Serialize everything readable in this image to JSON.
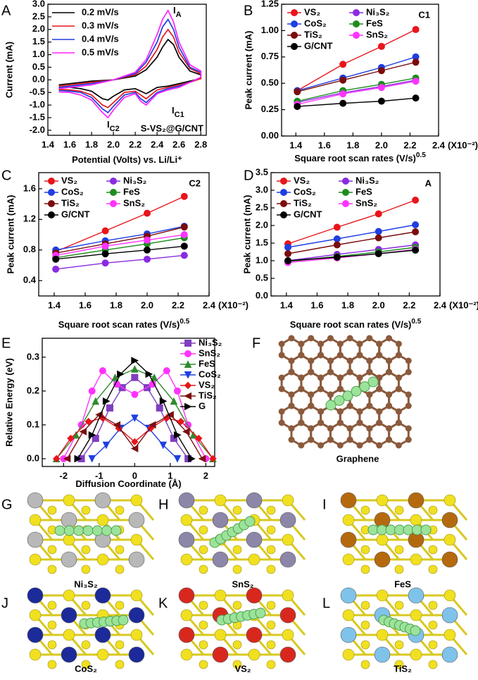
{
  "panels": [
    "A",
    "B",
    "C",
    "D",
    "E",
    "F",
    "G",
    "H",
    "I",
    "J",
    "K",
    "L"
  ],
  "structures": [
    "Graphene",
    "Ni₃S₂",
    "SnS₂",
    "FeS",
    "CoS₂",
    "VS₂",
    "TiS₂"
  ],
  "chart_data": [
    {
      "type": "line",
      "title": "S-VS₂@G/CNT",
      "xlabel": "Potential (Volts) vs. Li/Li⁺",
      "ylabel": "Current (mA)",
      "xlim": [
        1.4,
        2.85
      ],
      "ylim": [
        -2.2,
        3.0
      ],
      "xticks": [
        1.4,
        1.6,
        1.8,
        {
          "value": 2,
          "label": "2.0"
        },
        2.2,
        2.4,
        2.6,
        2.8
      ],
      "yticks": [
        {
          "value": -2,
          "label": "-2.0"
        },
        -1.5,
        {
          "value": -1,
          "label": "-1.0"
        },
        -0.5,
        {
          "value": 0,
          "label": "0.0"
        },
        0.5,
        {
          "value": 1,
          "label": "1.0"
        },
        1.5,
        {
          "value": 2,
          "label": "2.0"
        },
        2.5,
        {
          "value": 3,
          "label": "3.0"
        }
      ],
      "annotations": [
        {
          "text": "I",
          "subscript": "A"
        },
        {
          "text": "I",
          "subscript": "C1"
        },
        {
          "text": "I",
          "subscript": "C2"
        }
      ],
      "series": [
        {
          "name": "0.2 mV/s",
          "color": "#000000",
          "x": [
            1.5,
            1.6,
            1.8,
            2.0,
            2.2,
            2.3,
            2.4,
            2.45,
            2.5,
            2.55,
            2.6,
            2.7,
            2.8,
            2.8,
            2.7,
            2.6,
            2.5,
            2.4,
            2.3,
            2.25,
            2.2,
            2.1,
            2.0,
            1.95,
            1.9,
            1.8,
            1.7,
            1.6,
            1.5
          ],
          "values": [
            -0.2,
            -0.15,
            -0.05,
            0.0,
            0.15,
            0.4,
            0.9,
            1.3,
            1.6,
            1.4,
            0.9,
            0.35,
            0.2,
            0.05,
            -0.05,
            -0.15,
            -0.25,
            -0.3,
            -0.55,
            -0.45,
            -0.35,
            -0.4,
            -0.65,
            -0.8,
            -0.75,
            -0.45,
            -0.35,
            -0.3,
            -0.3
          ]
        },
        {
          "name": "0.3 mV/s",
          "color": "#e8151b",
          "x": [
            1.5,
            1.6,
            1.8,
            2.0,
            2.2,
            2.3,
            2.4,
            2.45,
            2.5,
            2.55,
            2.6,
            2.7,
            2.8,
            2.8,
            2.7,
            2.6,
            2.5,
            2.4,
            2.3,
            2.25,
            2.2,
            2.1,
            2.0,
            1.95,
            1.9,
            1.8,
            1.7,
            1.6,
            1.5
          ],
          "values": [
            -0.25,
            -0.2,
            -0.1,
            0.0,
            0.2,
            0.55,
            1.2,
            1.7,
            2.0,
            1.7,
            1.1,
            0.45,
            0.25,
            0.05,
            -0.1,
            -0.2,
            -0.3,
            -0.4,
            -0.75,
            -0.6,
            -0.45,
            -0.5,
            -0.9,
            -1.1,
            -1.0,
            -0.6,
            -0.45,
            -0.4,
            -0.38
          ]
        },
        {
          "name": "0.4 mV/s",
          "color": "#1f3fe0",
          "x": [
            1.5,
            1.6,
            1.8,
            2.0,
            2.2,
            2.3,
            2.4,
            2.45,
            2.5,
            2.55,
            2.6,
            2.7,
            2.8,
            2.8,
            2.7,
            2.6,
            2.5,
            2.4,
            2.3,
            2.25,
            2.2,
            2.1,
            2.0,
            1.95,
            1.9,
            1.8,
            1.7,
            1.6,
            1.5
          ],
          "values": [
            -0.3,
            -0.25,
            -0.15,
            0.0,
            0.25,
            0.7,
            1.5,
            2.1,
            2.4,
            2.0,
            1.3,
            0.5,
            0.3,
            0.1,
            -0.1,
            -0.25,
            -0.35,
            -0.5,
            -0.9,
            -0.75,
            -0.5,
            -0.6,
            -1.05,
            -1.3,
            -1.15,
            -0.7,
            -0.5,
            -0.45,
            -0.42
          ]
        },
        {
          "name": "0.5 mV/s",
          "color": "#ff22ff",
          "x": [
            1.5,
            1.6,
            1.8,
            2.0,
            2.2,
            2.3,
            2.4,
            2.45,
            2.5,
            2.55,
            2.6,
            2.7,
            2.8,
            2.8,
            2.7,
            2.6,
            2.5,
            2.4,
            2.3,
            2.25,
            2.2,
            2.1,
            2.0,
            1.95,
            1.9,
            1.8,
            1.7,
            1.6,
            1.5
          ],
          "values": [
            -0.35,
            -0.3,
            -0.2,
            0.0,
            0.3,
            0.8,
            1.8,
            2.4,
            2.75,
            2.3,
            1.5,
            0.6,
            0.35,
            0.1,
            -0.1,
            -0.3,
            -0.4,
            -0.55,
            -1.0,
            -0.85,
            -0.55,
            -0.7,
            -1.2,
            -1.5,
            -1.3,
            -0.8,
            -0.6,
            -0.5,
            -0.48
          ]
        }
      ]
    },
    {
      "type": "line",
      "corner_label": "C1",
      "xlabel": "Square root scan rates (V/s)",
      "xlabel_exponent": "0.5",
      "x_multiplier": "(X10⁻²)",
      "ylabel": "Peak current (mA)",
      "x": [
        1.41,
        1.73,
        2.0,
        2.24
      ],
      "xlim": [
        1.3,
        2.4
      ],
      "ylim": [
        0,
        1.25
      ],
      "xticks": [
        1.4,
        1.6,
        1.8,
        {
          "value": 2,
          "label": "2.0"
        },
        2.2,
        2.4
      ],
      "yticks": [
        {
          "value": 0,
          "label": "0.00"
        },
        0.25,
        {
          "value": 0.5,
          "label": "0.50"
        },
        0.75,
        {
          "value": 1,
          "label": "1.00"
        },
        1.25
      ],
      "series": [
        {
          "name": "VS₂",
          "color": "#e8151b",
          "marker": "circle",
          "values": [
            0.43,
            0.68,
            0.85,
            1.01
          ]
        },
        {
          "name": "Ni₃S₂",
          "color": "#8a2be2",
          "marker": "circle",
          "values": [
            0.32,
            0.41,
            0.47,
            0.53
          ]
        },
        {
          "name": "CoS₂",
          "color": "#1f3fe0",
          "marker": "circle",
          "values": [
            0.43,
            0.55,
            0.65,
            0.75
          ]
        },
        {
          "name": "FeS",
          "color": "#1e8c1e",
          "marker": "circle",
          "values": [
            0.33,
            0.43,
            0.49,
            0.55
          ]
        },
        {
          "name": "TiS₂",
          "color": "#7b0c0c",
          "marker": "circle",
          "values": [
            0.42,
            0.53,
            0.62,
            0.7
          ]
        },
        {
          "name": "SnS₂",
          "color": "#ff33ff",
          "marker": "circle",
          "values": [
            0.3,
            0.4,
            0.46,
            0.52
          ]
        },
        {
          "name": "G/CNT",
          "color": "#000000",
          "marker": "circle",
          "values": [
            0.28,
            0.31,
            0.33,
            0.36
          ]
        }
      ]
    },
    {
      "type": "line",
      "corner_label": "C2",
      "xlabel": "Square root scan rates (V/s)",
      "xlabel_exponent": "0.5",
      "x_multiplier": "(X10⁻²)",
      "ylabel": "Peak current (mA)",
      "x": [
        1.41,
        1.73,
        2.0,
        2.24
      ],
      "xlim": [
        1.3,
        2.4
      ],
      "ylim": [
        0.2,
        1.81
      ],
      "xticks": [
        1.4,
        1.6,
        1.8,
        {
          "value": 2,
          "label": "2.0"
        },
        2.2,
        2.4
      ],
      "yticks": [
        0.4,
        0.8,
        1.2,
        1.6
      ],
      "series": [
        {
          "name": "VS₂",
          "color": "#e8151b",
          "marker": "circle",
          "values": [
            0.78,
            1.05,
            1.28,
            1.5
          ]
        },
        {
          "name": "Ni₃S₂",
          "color": "#8a2be2",
          "marker": "circle",
          "values": [
            0.55,
            0.63,
            0.68,
            0.73
          ]
        },
        {
          "name": "CoS₂",
          "color": "#1f3fe0",
          "marker": "circle",
          "values": [
            0.8,
            0.92,
            1.01,
            1.11
          ]
        },
        {
          "name": "FeS",
          "color": "#1e8c1e",
          "marker": "circle",
          "values": [
            0.7,
            0.8,
            0.88,
            0.96
          ]
        },
        {
          "name": "TiS₂",
          "color": "#7b0c0c",
          "marker": "circle",
          "values": [
            0.76,
            0.88,
            0.98,
            1.1
          ]
        },
        {
          "name": "SnS₂",
          "color": "#ff33ff",
          "marker": "circle",
          "values": [
            0.73,
            0.85,
            0.93,
            1.0
          ]
        },
        {
          "name": "G/CNT",
          "color": "#000000",
          "marker": "circle",
          "values": [
            0.68,
            0.75,
            0.8,
            0.85
          ]
        }
      ]
    },
    {
      "type": "line",
      "corner_label": "A",
      "xlabel": "Square root scan rates (V/s)",
      "xlabel_exponent": "0.5",
      "x_multiplier": "(X10⁻²)",
      "ylabel": "Peak current (mA)",
      "x": [
        1.41,
        1.73,
        2.0,
        2.24
      ],
      "xlim": [
        1.3,
        2.4
      ],
      "ylim": [
        0,
        3.5
      ],
      "xticks": [
        1.4,
        1.6,
        1.8,
        {
          "value": 2,
          "label": "2.0"
        },
        2.2,
        2.4
      ],
      "yticks": [
        {
          "value": 0,
          "label": "0.0"
        },
        0.5,
        {
          "value": 1,
          "label": "1.0"
        },
        1.5,
        {
          "value": 2,
          "label": "2.0"
        },
        2.5,
        {
          "value": 3,
          "label": "3.0"
        },
        3.5
      ],
      "series": [
        {
          "name": "VS₂",
          "color": "#e8151b",
          "marker": "circle",
          "values": [
            1.48,
            1.95,
            2.33,
            2.72
          ]
        },
        {
          "name": "Ni₃S₂",
          "color": "#8a2be2",
          "marker": "circle",
          "values": [
            1.0,
            1.18,
            1.32,
            1.45
          ]
        },
        {
          "name": "CoS₂",
          "color": "#1f3fe0",
          "marker": "circle",
          "values": [
            1.38,
            1.62,
            1.83,
            2.02
          ]
        },
        {
          "name": "FeS",
          "color": "#1e8c1e",
          "marker": "circle",
          "values": [
            0.98,
            1.12,
            1.25,
            1.38
          ]
        },
        {
          "name": "TiS₂",
          "color": "#7b0c0c",
          "marker": "circle",
          "values": [
            1.2,
            1.45,
            1.65,
            1.82
          ]
        },
        {
          "name": "SnS₂",
          "color": "#ff33ff",
          "marker": "circle",
          "values": [
            0.95,
            1.08,
            1.2,
            1.32
          ]
        },
        {
          "name": "G/CNT",
          "color": "#000000",
          "marker": "circle",
          "values": [
            1.0,
            1.1,
            1.2,
            1.3
          ]
        }
      ]
    },
    {
      "type": "line",
      "xlabel": "Diffusion Coordinate (Å)",
      "ylabel": "Relative Energy (eV)",
      "xlim": [
        -2.6,
        2.25
      ],
      "ylim": [
        -0.023,
        0.356
      ],
      "xticks": [
        -2,
        -1,
        0,
        1,
        2
      ],
      "yticks": [
        {
          "value": 0,
          "label": "0.0"
        },
        0.1,
        0.2,
        0.3
      ],
      "series": [
        {
          "name": "Ni₃S₂",
          "color": "#7f3fbf",
          "marker": "square",
          "x": [
            -1.5,
            -1.1,
            -0.7,
            -0.35,
            0,
            0.35,
            0.7,
            1.1,
            1.5
          ],
          "values": [
            0,
            0.06,
            0.15,
            0.21,
            0.24,
            0.21,
            0.15,
            0.06,
            0
          ]
        },
        {
          "name": "SnS₂",
          "color": "#ff33ff",
          "marker": "circle",
          "x": [
            -2.0,
            -1.5,
            -1.2,
            -0.9,
            -0.5,
            0,
            0.5,
            0.9,
            1.2,
            1.5,
            2.0
          ],
          "values": [
            0,
            0.1,
            0.2,
            0.26,
            0.22,
            0.19,
            0.22,
            0.26,
            0.2,
            0.1,
            0
          ]
        },
        {
          "name": "FeS",
          "color": "#2e8b2e",
          "marker": "triangle-up",
          "x": [
            -2.2,
            -1.65,
            -1.1,
            -0.55,
            0,
            0.55,
            1.1,
            1.65,
            2.2
          ],
          "values": [
            0,
            0.07,
            0.17,
            0.24,
            0.265,
            0.24,
            0.17,
            0.07,
            0
          ]
        },
        {
          "name": "CoS₂",
          "color": "#1f3fe0",
          "marker": "triangle-down",
          "x": [
            -1.2,
            -0.8,
            -0.4,
            0,
            0.4,
            0.8,
            1.2
          ],
          "values": [
            0,
            0.04,
            0.09,
            0.12,
            0.09,
            0.04,
            0
          ]
        },
        {
          "name": "VS₂",
          "color": "#e8151b",
          "marker": "diamond",
          "x": [
            -2.2,
            -1.8,
            -1.3,
            -0.9,
            -0.45,
            0,
            0.45,
            0.9,
            1.3,
            1.8,
            2.2
          ],
          "values": [
            0,
            0.06,
            0.11,
            0.12,
            0.09,
            0.05,
            0.09,
            0.12,
            0.11,
            0.06,
            0
          ]
        },
        {
          "name": "TiS₂",
          "color": "#7b1010",
          "marker": "triangle-left",
          "x": [
            -1.9,
            -1.45,
            -1.0,
            -0.5,
            0,
            0.5,
            1.0,
            1.45,
            1.9
          ],
          "values": [
            0,
            0.08,
            0.13,
            0.1,
            0.03,
            0.1,
            0.13,
            0.08,
            0
          ]
        },
        {
          "name": "G",
          "color": "#000000",
          "marker": "triangle-right",
          "x": [
            -1.6,
            -1.2,
            -0.8,
            -0.4,
            0,
            0.4,
            0.8,
            1.2,
            1.6
          ],
          "values": [
            0,
            0.07,
            0.17,
            0.25,
            0.29,
            0.25,
            0.17,
            0.07,
            0
          ]
        }
      ]
    }
  ]
}
